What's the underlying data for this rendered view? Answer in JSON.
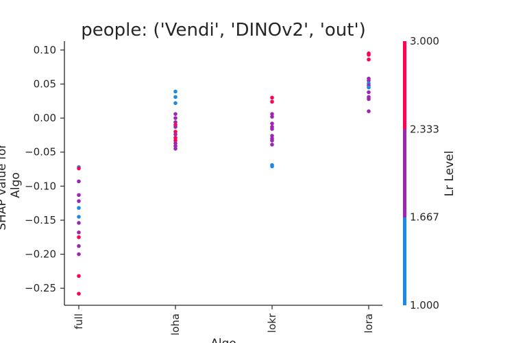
{
  "chart_data": {
    "type": "scatter",
    "title": "people: ('Vendi', 'DINOv2', 'out')",
    "xlabel": "Algo",
    "ylabel": "SHAP value for\nAlgo",
    "categories": [
      "full",
      "loha",
      "lokr",
      "lora"
    ],
    "yticks": [
      "0.10",
      "0.05",
      "0.00",
      "−0.05",
      "−0.10",
      "−0.15",
      "−0.20",
      "−0.25"
    ],
    "ytick_values": [
      0.1,
      0.05,
      0.0,
      -0.05,
      -0.1,
      -0.15,
      -0.2,
      -0.25
    ],
    "ylim": [
      -0.275,
      0.113
    ],
    "colorbar": {
      "label": "Lr Level",
      "ticks": [
        "3.000",
        "2.333",
        "1.667",
        "1.000"
      ],
      "tick_values": [
        3.0,
        2.333,
        1.667,
        1.0
      ],
      "range": [
        1.0,
        3.0
      ],
      "colors": {
        "low": "#1e88e5",
        "mid": "#9c27b0",
        "high": "#ff0052"
      }
    },
    "points": [
      {
        "x": "full",
        "y": -0.072,
        "level": 1
      },
      {
        "x": "full",
        "y": -0.074,
        "level": 3
      },
      {
        "x": "full",
        "y": -0.093,
        "level": 2
      },
      {
        "x": "full",
        "y": -0.113,
        "level": 2
      },
      {
        "x": "full",
        "y": -0.122,
        "level": 2
      },
      {
        "x": "full",
        "y": -0.132,
        "level": 1
      },
      {
        "x": "full",
        "y": -0.145,
        "level": 1
      },
      {
        "x": "full",
        "y": -0.154,
        "level": 2
      },
      {
        "x": "full",
        "y": -0.168,
        "level": 2
      },
      {
        "x": "full",
        "y": -0.175,
        "level": 3
      },
      {
        "x": "full",
        "y": -0.188,
        "level": 2
      },
      {
        "x": "full",
        "y": -0.2,
        "level": 2
      },
      {
        "x": "full",
        "y": -0.232,
        "level": 3
      },
      {
        "x": "full",
        "y": -0.258,
        "level": 3
      },
      {
        "x": "loha",
        "y": 0.039,
        "level": 1
      },
      {
        "x": "loha",
        "y": 0.031,
        "level": 1
      },
      {
        "x": "loha",
        "y": 0.022,
        "level": 1
      },
      {
        "x": "loha",
        "y": 0.006,
        "level": 2
      },
      {
        "x": "loha",
        "y": 0.0,
        "level": 2
      },
      {
        "x": "loha",
        "y": -0.006,
        "level": 2
      },
      {
        "x": "loha",
        "y": -0.01,
        "level": 3
      },
      {
        "x": "loha",
        "y": -0.013,
        "level": 2
      },
      {
        "x": "loha",
        "y": -0.02,
        "level": 3
      },
      {
        "x": "loha",
        "y": -0.024,
        "level": 2
      },
      {
        "x": "loha",
        "y": -0.029,
        "level": 3
      },
      {
        "x": "loha",
        "y": -0.033,
        "level": 3
      },
      {
        "x": "loha",
        "y": -0.037,
        "level": 2
      },
      {
        "x": "loha",
        "y": -0.041,
        "level": 2
      },
      {
        "x": "loha",
        "y": -0.045,
        "level": 2
      },
      {
        "x": "lokr",
        "y": 0.03,
        "level": 3
      },
      {
        "x": "lokr",
        "y": 0.024,
        "level": 3
      },
      {
        "x": "lokr",
        "y": 0.006,
        "level": 2
      },
      {
        "x": "lokr",
        "y": 0.002,
        "level": 2
      },
      {
        "x": "lokr",
        "y": -0.008,
        "level": 2
      },
      {
        "x": "lokr",
        "y": -0.013,
        "level": 2
      },
      {
        "x": "lokr",
        "y": -0.016,
        "level": 2
      },
      {
        "x": "lokr",
        "y": -0.026,
        "level": 2
      },
      {
        "x": "lokr",
        "y": -0.03,
        "level": 2
      },
      {
        "x": "lokr",
        "y": -0.033,
        "level": 2
      },
      {
        "x": "lokr",
        "y": -0.039,
        "level": 2
      },
      {
        "x": "lokr",
        "y": -0.069,
        "level": 1
      },
      {
        "x": "lokr",
        "y": -0.071,
        "level": 1
      },
      {
        "x": "lora",
        "y": 0.095,
        "level": 3
      },
      {
        "x": "lora",
        "y": 0.093,
        "level": 3
      },
      {
        "x": "lora",
        "y": 0.086,
        "level": 3
      },
      {
        "x": "lora",
        "y": 0.058,
        "level": 2
      },
      {
        "x": "lora",
        "y": 0.055,
        "level": 2
      },
      {
        "x": "lora",
        "y": 0.051,
        "level": 1
      },
      {
        "x": "lora",
        "y": 0.048,
        "level": 2
      },
      {
        "x": "lora",
        "y": 0.045,
        "level": 1
      },
      {
        "x": "lora",
        "y": 0.038,
        "level": 2
      },
      {
        "x": "lora",
        "y": 0.031,
        "level": 2
      },
      {
        "x": "lora",
        "y": 0.028,
        "level": 2
      },
      {
        "x": "lora",
        "y": 0.01,
        "level": 2
      }
    ]
  }
}
